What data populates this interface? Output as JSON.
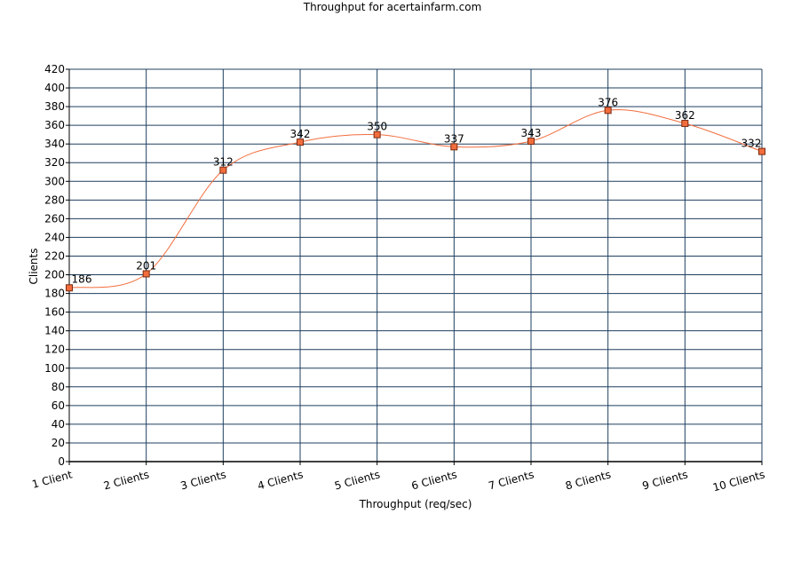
{
  "chart_data": {
    "type": "line",
    "title": "Throughput for acertainfarm.com",
    "xlabel": "Throughput (req/sec)",
    "ylabel": "Clients",
    "categories": [
      "1 Client",
      "2 Clients",
      "3 Clients",
      "4 Clients",
      "5 Clients",
      "6 Clients",
      "7 Clients",
      "8 Clients",
      "9 Clients",
      "10 Clients"
    ],
    "series": [
      {
        "values": [
          186,
          201,
          312,
          342,
          350,
          337,
          343,
          376,
          362,
          332
        ]
      }
    ],
    "ylim": [
      0,
      420
    ],
    "ytick_step": 20,
    "grid": true,
    "smooth": true,
    "data_labels": true,
    "line_color": "#f26d3d",
    "marker_color": "#f26d3d",
    "grid_color": "#1f3f5f"
  }
}
